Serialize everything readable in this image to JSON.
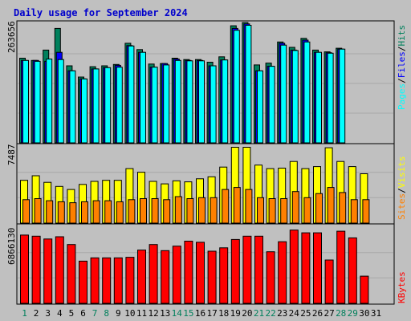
{
  "chart_data": {
    "type": "bar",
    "title": "Daily usage for September 2024",
    "days": [
      "1",
      "2",
      "3",
      "4",
      "5",
      "6",
      "7",
      "8",
      "9",
      "10",
      "11",
      "12",
      "13",
      "14",
      "15",
      "16",
      "17",
      "18",
      "19",
      "20",
      "21",
      "22",
      "23",
      "24",
      "25",
      "26",
      "27",
      "28",
      "29",
      "30",
      "31"
    ],
    "weekend_days": [
      1,
      7,
      8,
      14,
      15,
      21,
      22,
      28,
      29
    ],
    "colors": {
      "background": "#c0c0c0",
      "title": "#0000cc",
      "hits": "#00805c",
      "files": "#0000ff",
      "pages": "#00ffff",
      "visits": "#ffff00",
      "sites": "#ff8000",
      "kbytes": "#ff0000",
      "weekday_label": "#000000",
      "weekend_label": "#00805c"
    },
    "top_panel": {
      "ymax_label": "263656",
      "ymax": 263656,
      "legend": [
        "Pages",
        "Files",
        "Hits"
      ],
      "series": [
        {
          "name": "Hits",
          "values": [
            188000,
            183000,
            206000,
            254000,
            171000,
            146000,
            169000,
            171000,
            174000,
            221000,
            207000,
            175000,
            176000,
            188000,
            185000,
            185000,
            179000,
            191000,
            260000,
            267000,
            173000,
            177000,
            224000,
            212000,
            232000,
            206000,
            202000,
            210000,
            0,
            0,
            0
          ]
        },
        {
          "name": "Files",
          "values": [
            183000,
            183000,
            181000,
            201000,
            160000,
            142000,
            164000,
            167000,
            172000,
            216000,
            201000,
            168000,
            176000,
            186000,
            183000,
            183000,
            171000,
            184000,
            254000,
            264000,
            160000,
            170000,
            221000,
            206000,
            228000,
            201000,
            200000,
            208000,
            0,
            0,
            0
          ]
        },
        {
          "name": "Pages",
          "values": [
            183000,
            181000,
            186000,
            185000,
            160000,
            142000,
            164000,
            167000,
            168000,
            215000,
            201000,
            168000,
            173000,
            183000,
            182000,
            182000,
            171000,
            184000,
            250000,
            261000,
            160000,
            170000,
            217000,
            205000,
            224000,
            201000,
            199000,
            208000,
            0,
            0,
            0
          ]
        }
      ]
    },
    "middle_panel": {
      "ymax_label": "7487",
      "ymax": 7487,
      "legend": [
        "Sites",
        "Visits"
      ],
      "series": [
        {
          "name": "Visits",
          "values": [
            4200,
            4650,
            4000,
            3600,
            3300,
            3800,
            4100,
            4200,
            4200,
            5350,
            5000,
            4100,
            3850,
            4150,
            4050,
            4350,
            4550,
            5500,
            7450,
            7450,
            5700,
            5350,
            5400,
            6050,
            5350,
            5550,
            7400,
            6050,
            5550,
            4850,
            0
          ]
        },
        {
          "name": "Sites",
          "values": [
            2300,
            2400,
            2200,
            2100,
            2000,
            2100,
            2200,
            2200,
            2100,
            2300,
            2400,
            2400,
            2300,
            2600,
            2400,
            2500,
            2500,
            3300,
            3500,
            3300,
            2500,
            2400,
            2400,
            3100,
            2500,
            2900,
            3500,
            3000,
            2300,
            2300,
            0
          ]
        }
      ]
    },
    "bottom_panel": {
      "ymax_label": "6866130",
      "ymax": 6866130,
      "legend": [
        "KBytes"
      ],
      "series": [
        {
          "name": "KBytes",
          "values": [
            6150000,
            6050000,
            5800000,
            6000000,
            5300000,
            3800000,
            4100000,
            4100000,
            4100000,
            4150000,
            4800000,
            5300000,
            4750000,
            5150000,
            5600000,
            5500000,
            4700000,
            5000000,
            5750000,
            6050000,
            6050000,
            4650000,
            5550000,
            6600000,
            6350000,
            6350000,
            3900000,
            6500000,
            5900000,
            2450000,
            0
          ]
        }
      ]
    }
  }
}
